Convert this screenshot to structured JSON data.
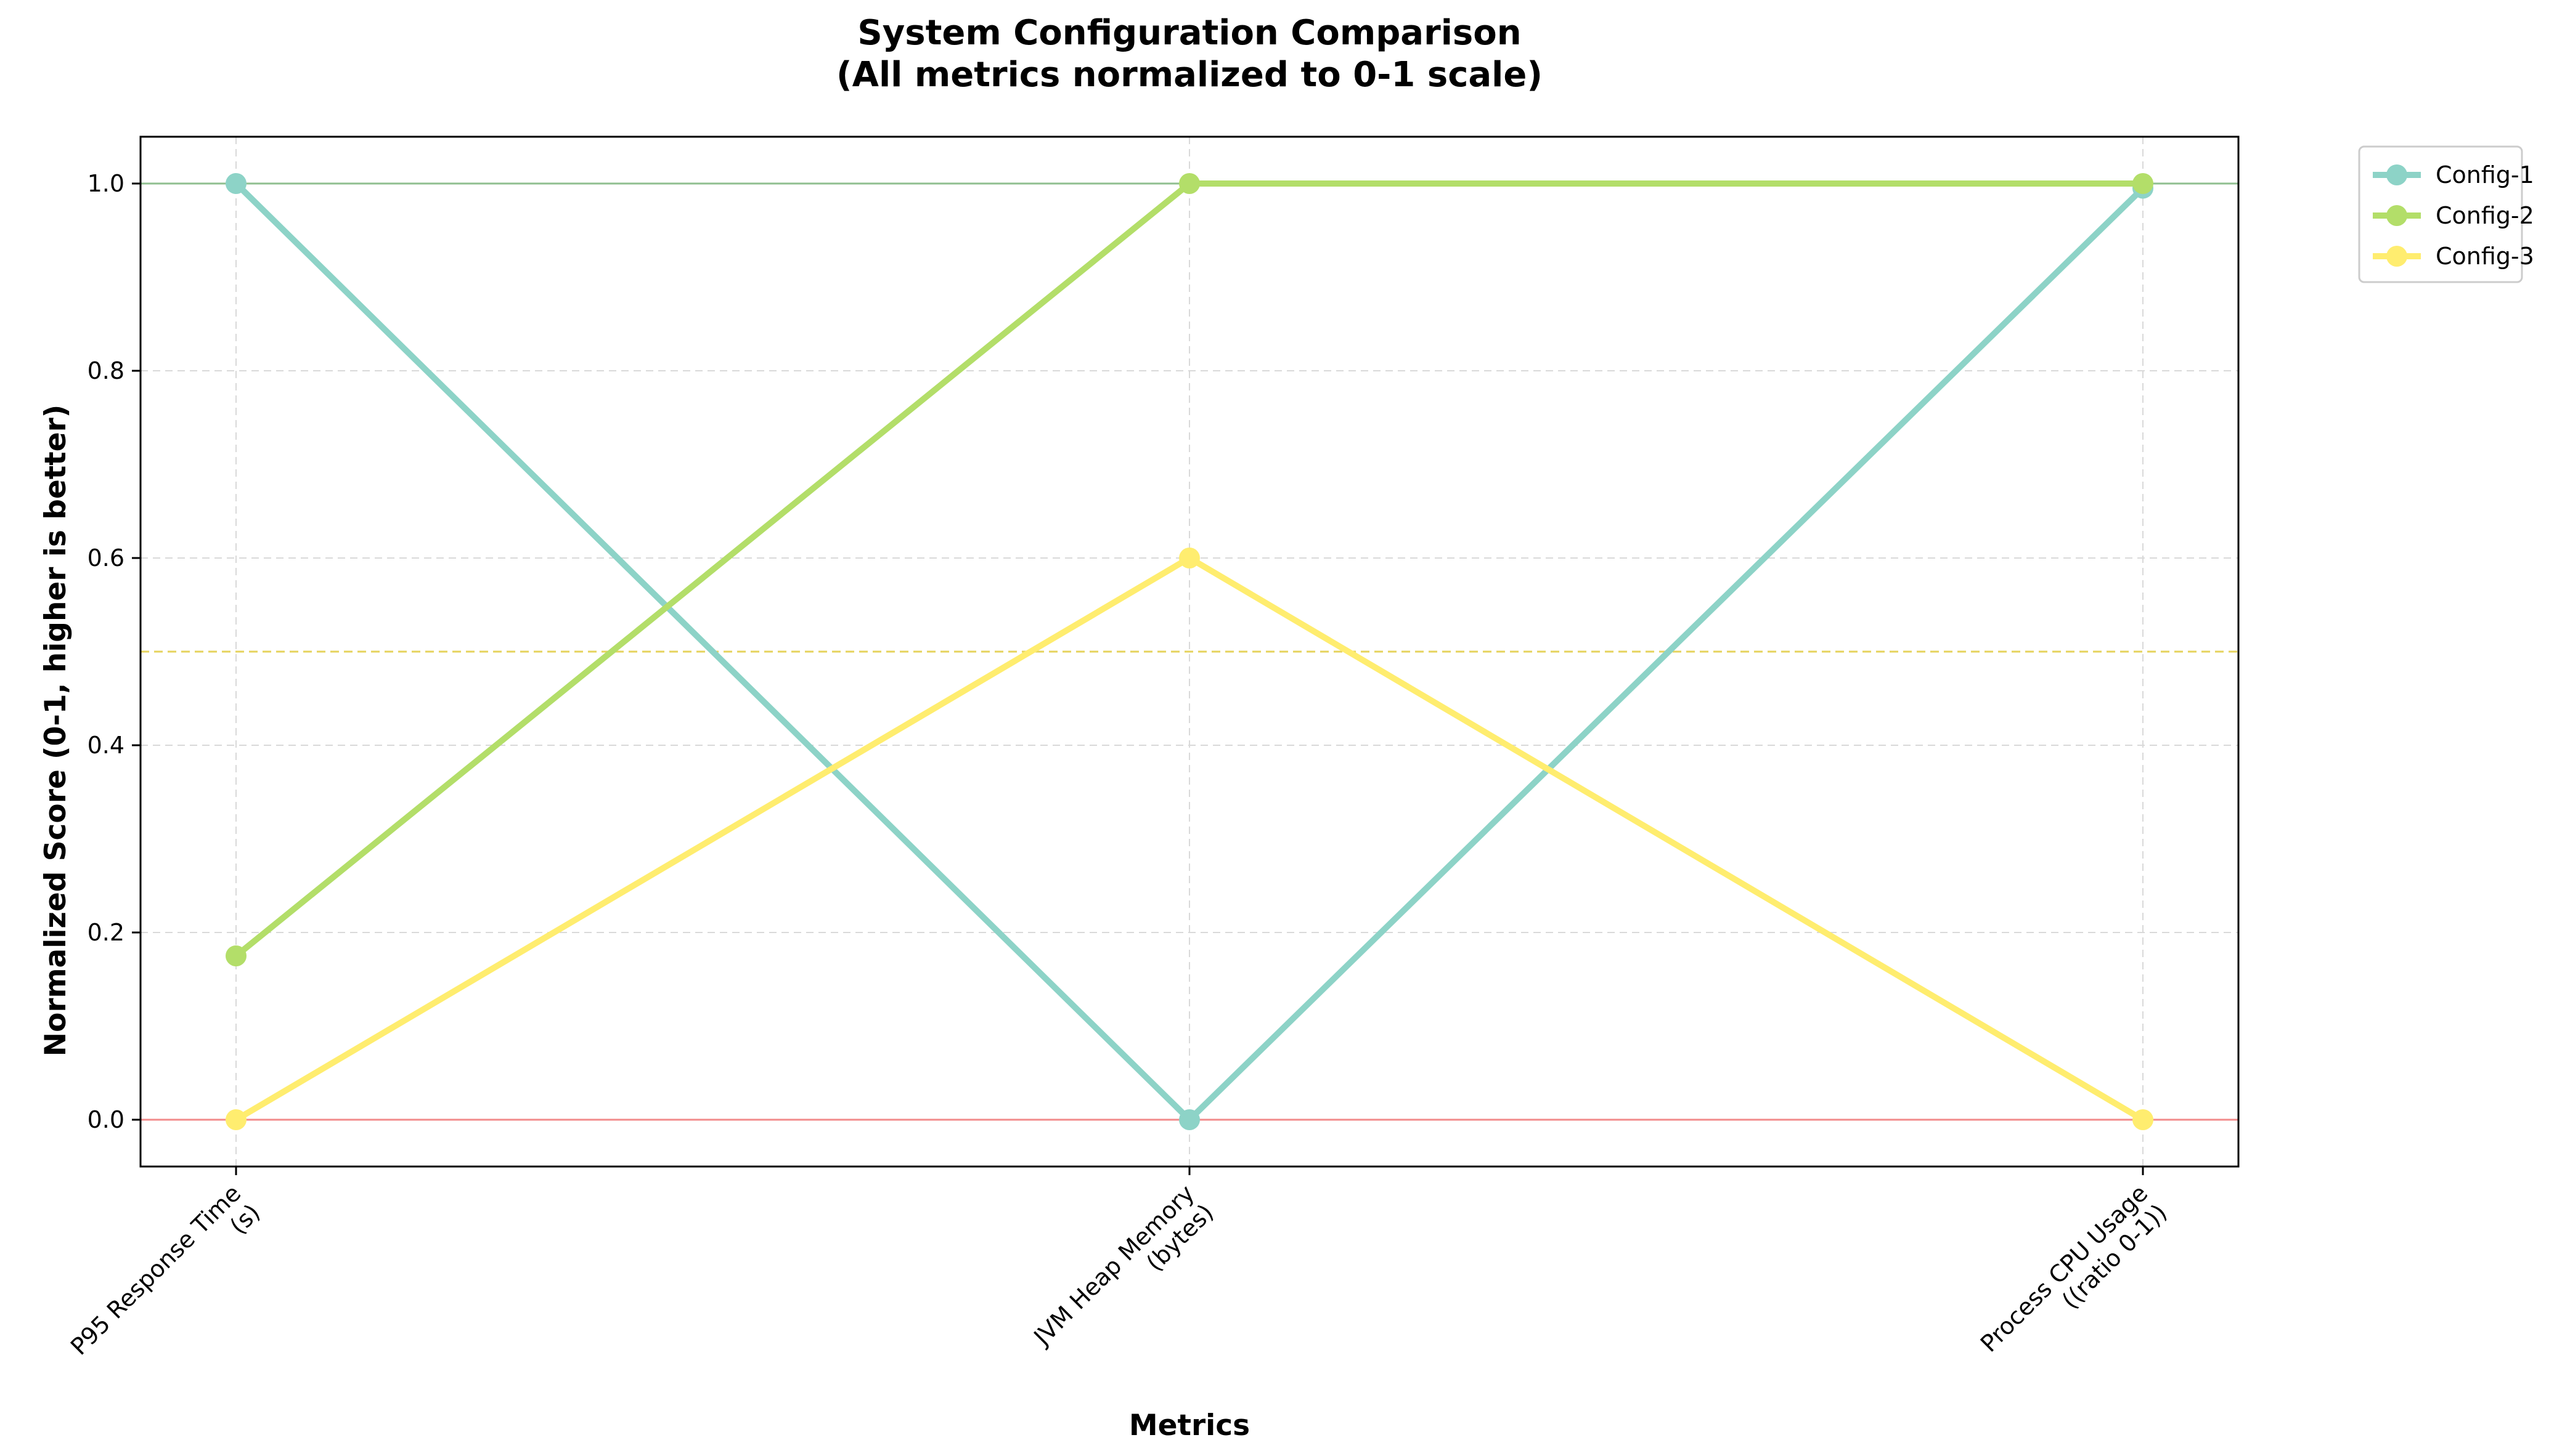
{
  "chart_data": {
    "type": "line",
    "title": "System Configuration Comparison",
    "subtitle": "(All metrics normalized to 0-1 scale)",
    "xlabel": "Metrics",
    "ylabel": "Normalized Score (0-1, higher is better)",
    "categories": [
      [
        "P95 Response Time",
        "(s)"
      ],
      [
        "JVM Heap Memory",
        "(bytes)"
      ],
      [
        "Process CPU Usage",
        "((ratio 0-1))"
      ]
    ],
    "ylim": [
      -0.05,
      1.05
    ],
    "yticks": [
      0.0,
      0.2,
      0.4,
      0.6,
      0.8,
      1.0
    ],
    "ytick_labels": [
      "0.0",
      "0.2",
      "0.4",
      "0.6",
      "0.8",
      "1.0"
    ],
    "grid": true,
    "legend_position": "outside-top-right",
    "reference_lines": [
      {
        "y": 1.0,
        "color": "#8fbf8f",
        "style": "solid"
      },
      {
        "y": 0.5,
        "color": "#e6d35c",
        "style": "dashed"
      },
      {
        "y": 0.0,
        "color": "#f28b8b",
        "style": "solid"
      }
    ],
    "series": [
      {
        "name": "Config-1",
        "color": "#8dd3c7",
        "values": [
          1.0,
          0.0,
          0.995
        ]
      },
      {
        "name": "Config-2",
        "color": "#b3de69",
        "values": [
          0.175,
          1.0,
          1.0
        ]
      },
      {
        "name": "Config-3",
        "color": "#ffed6f",
        "values": [
          0.0,
          0.6,
          0.0
        ]
      }
    ]
  }
}
